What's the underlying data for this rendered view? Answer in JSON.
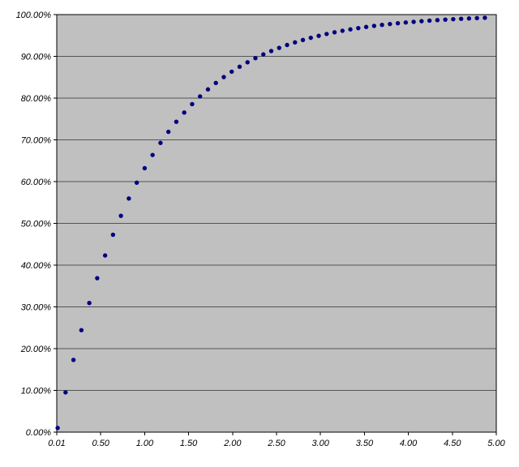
{
  "chart_data": {
    "type": "scatter",
    "title": "",
    "xlabel": "",
    "ylabel": "",
    "xlim": [
      0,
      5
    ],
    "ylim": [
      0,
      1
    ],
    "grid": "horizontal",
    "legend": "none",
    "marker_color": "#000080",
    "plot_bg": "#C0C0C0",
    "grid_color": "#555555",
    "border_color": "#000000",
    "x_ticks": [
      "0.01",
      "0.50",
      "1.00",
      "1.50",
      "2.00",
      "2.50",
      "3.00",
      "3.50",
      "4.00",
      "4.50",
      "5.00"
    ],
    "y_ticks": [
      "0.00%",
      "10.00%",
      "20.00%",
      "30.00%",
      "40.00%",
      "50.00%",
      "60.00%",
      "70.00%",
      "80.00%",
      "90.00%",
      "100.00%"
    ],
    "points": [
      [
        0.01,
        0.01
      ],
      [
        0.1,
        0.0952
      ],
      [
        0.19,
        0.173
      ],
      [
        0.28,
        0.2442
      ],
      [
        0.37,
        0.3093
      ],
      [
        0.46,
        0.3687
      ],
      [
        0.55,
        0.4231
      ],
      [
        0.64,
        0.4727
      ],
      [
        0.73,
        0.5181
      ],
      [
        0.82,
        0.5596
      ],
      [
        0.91,
        0.5975
      ],
      [
        1.0,
        0.6321
      ],
      [
        1.09,
        0.6638
      ],
      [
        1.18,
        0.6927
      ],
      [
        1.27,
        0.7192
      ],
      [
        1.36,
        0.7433
      ],
      [
        1.45,
        0.7654
      ],
      [
        1.54,
        0.7856
      ],
      [
        1.63,
        0.8041
      ],
      [
        1.72,
        0.8209
      ],
      [
        1.81,
        0.8363
      ],
      [
        1.9,
        0.8504
      ],
      [
        1.99,
        0.8633
      ],
      [
        2.08,
        0.8751
      ],
      [
        2.17,
        0.8858
      ],
      [
        2.26,
        0.8957
      ],
      [
        2.35,
        0.9046
      ],
      [
        2.44,
        0.9128
      ],
      [
        2.53,
        0.9203
      ],
      [
        2.62,
        0.9272
      ],
      [
        2.71,
        0.9335
      ],
      [
        2.8,
        0.9392
      ],
      [
        2.89,
        0.9444
      ],
      [
        2.98,
        0.9492
      ],
      [
        3.07,
        0.9536
      ],
      [
        3.16,
        0.9576
      ],
      [
        3.25,
        0.9612
      ],
      [
        3.34,
        0.9646
      ],
      [
        3.43,
        0.9676
      ],
      [
        3.52,
        0.9704
      ],
      [
        3.61,
        0.9729
      ],
      [
        3.7,
        0.9753
      ],
      [
        3.79,
        0.9774
      ],
      [
        3.88,
        0.9793
      ],
      [
        3.97,
        0.9811
      ],
      [
        4.06,
        0.9827
      ],
      [
        4.15,
        0.9842
      ],
      [
        4.24,
        0.9856
      ],
      [
        4.33,
        0.9868
      ],
      [
        4.42,
        0.988
      ],
      [
        4.51,
        0.989
      ],
      [
        4.6,
        0.9899
      ],
      [
        4.69,
        0.9908
      ],
      [
        4.78,
        0.9916
      ],
      [
        4.87,
        0.9923
      ]
    ]
  }
}
